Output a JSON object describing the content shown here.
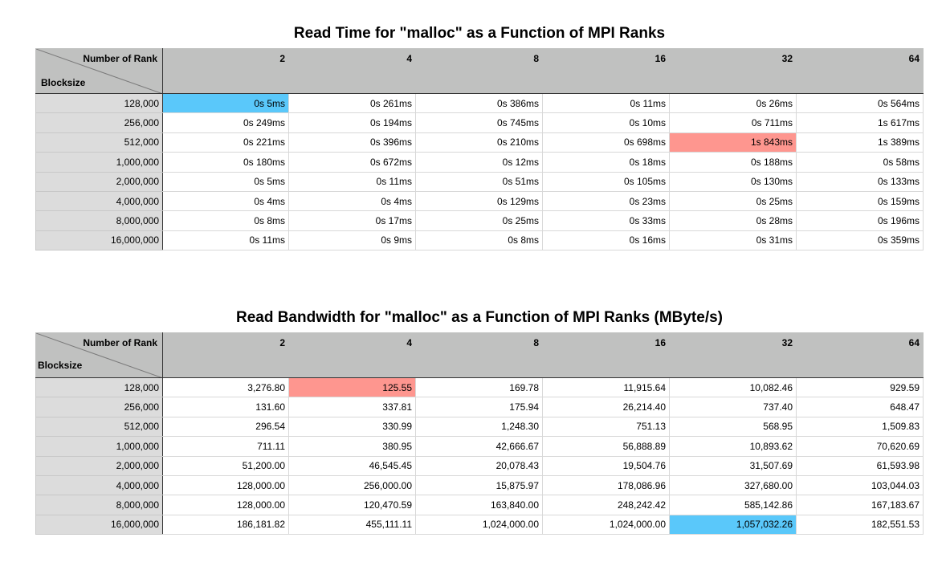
{
  "read_time": {
    "title": "Read Time for \"malloc\" as a Function of MPI Ranks",
    "corner_top": "Number of Rank",
    "corner_bottom": "Blocksize",
    "columns": [
      "2",
      "4",
      "8",
      "16",
      "32",
      "64"
    ],
    "rows": [
      {
        "label": "128,000",
        "cells": [
          "0s 5ms",
          "0s 261ms",
          "0s 386ms",
          "0s 11ms",
          "0s 26ms",
          "0s 564ms"
        ]
      },
      {
        "label": "256,000",
        "cells": [
          "0s 249ms",
          "0s 194ms",
          "0s 745ms",
          "0s 10ms",
          "0s 711ms",
          "1s 617ms"
        ]
      },
      {
        "label": "512,000",
        "cells": [
          "0s 221ms",
          "0s 396ms",
          "0s 210ms",
          "0s 698ms",
          "1s 843ms",
          "1s 389ms"
        ]
      },
      {
        "label": "1,000,000",
        "cells": [
          "0s 180ms",
          "0s 672ms",
          "0s 12ms",
          "0s 18ms",
          "0s 188ms",
          "0s 58ms"
        ]
      },
      {
        "label": "2,000,000",
        "cells": [
          "0s 5ms",
          "0s 11ms",
          "0s 51ms",
          "0s 105ms",
          "0s 130ms",
          "0s 133ms"
        ]
      },
      {
        "label": "4,000,000",
        "cells": [
          "0s 4ms",
          "0s 4ms",
          "0s 129ms",
          "0s 23ms",
          "0s 25ms",
          "0s 159ms"
        ]
      },
      {
        "label": "8,000,000",
        "cells": [
          "0s 8ms",
          "0s 17ms",
          "0s 25ms",
          "0s 33ms",
          "0s 28ms",
          "0s 196ms"
        ]
      },
      {
        "label": "16,000,000",
        "cells": [
          "0s 11ms",
          "0s 9ms",
          "0s 8ms",
          "0s 16ms",
          "0s 31ms",
          "0s 359ms"
        ]
      }
    ],
    "highlights": [
      {
        "row": 0,
        "col": 0,
        "color": "#5ac8fa"
      },
      {
        "row": 2,
        "col": 4,
        "color": "#fe968f"
      }
    ]
  },
  "read_bandwidth": {
    "title": "Read Bandwidth for \"malloc\" as a Function of MPI Ranks (MByte/s)",
    "corner_top": "Number of Rank",
    "corner_bottom": "Blocksize",
    "columns": [
      "2",
      "4",
      "8",
      "16",
      "32",
      "64"
    ],
    "rows": [
      {
        "label": "128,000",
        "cells": [
          "3,276.80",
          "125.55",
          "169.78",
          "11,915.64",
          "10,082.46",
          "929.59"
        ]
      },
      {
        "label": "256,000",
        "cells": [
          "131.60",
          "337.81",
          "175.94",
          "26,214.40",
          "737.40",
          "648.47"
        ]
      },
      {
        "label": "512,000",
        "cells": [
          "296.54",
          "330.99",
          "1,248.30",
          "751.13",
          "568.95",
          "1,509.83"
        ]
      },
      {
        "label": "1,000,000",
        "cells": [
          "711.11",
          "380.95",
          "42,666.67",
          "56,888.89",
          "10,893.62",
          "70,620.69"
        ]
      },
      {
        "label": "2,000,000",
        "cells": [
          "51,200.00",
          "46,545.45",
          "20,078.43",
          "19,504.76",
          "31,507.69",
          "61,593.98"
        ]
      },
      {
        "label": "4,000,000",
        "cells": [
          "128,000.00",
          "256,000.00",
          "15,875.97",
          "178,086.96",
          "327,680.00",
          "103,044.03"
        ]
      },
      {
        "label": "8,000,000",
        "cells": [
          "128,000.00",
          "120,470.59",
          "163,840.00",
          "248,242.42",
          "585,142.86",
          "167,183.67"
        ]
      },
      {
        "label": "16,000,000",
        "cells": [
          "186,181.82",
          "455,111.11",
          "1,024,000.00",
          "1,024,000.00",
          "1,057,032.26",
          "182,551.53"
        ]
      }
    ],
    "highlights": [
      {
        "row": 0,
        "col": 1,
        "color": "#fe968f"
      },
      {
        "row": 7,
        "col": 4,
        "color": "#5ac8fa"
      }
    ]
  }
}
